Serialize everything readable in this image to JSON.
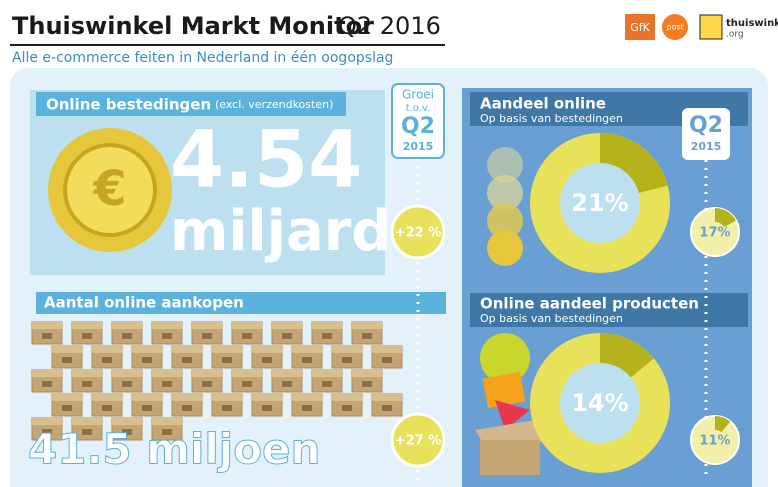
{
  "header": {
    "title": "Thuiswinkel Markt Monitor",
    "period": "Q2 2016",
    "subtitle": "Alle e-commerce feiten in Nederland in één oogopslag",
    "logos": [
      "GfK",
      "post",
      "thuiswinkel",
      ".org"
    ]
  },
  "growth_badge": {
    "line1": "Groei",
    "line2": "t.o.v.",
    "line3": "Q2",
    "line4": "2015"
  },
  "spending": {
    "title": "Online bestedingen",
    "note": "(excl. verzendkosten)",
    "amount": "4.54",
    "unit": "miljard",
    "growth": "+22 %"
  },
  "purchases": {
    "title": "Aantal online aankopen",
    "amount": "41.5 miljoen",
    "growth": "+27 %"
  },
  "share_online": {
    "title": "Aandeel online",
    "subtitle": "Op basis van bestedingen",
    "value": 21,
    "value_label": "21%",
    "previous": {
      "period": "Q2",
      "year": "2015",
      "value": 17,
      "value_label": "17%"
    }
  },
  "share_products": {
    "title": "Online aandeel producten",
    "subtitle": "Op basis van bestedingen",
    "value": 14,
    "value_label": "14%",
    "previous": {
      "value": 11,
      "value_label": "11%"
    }
  }
}
